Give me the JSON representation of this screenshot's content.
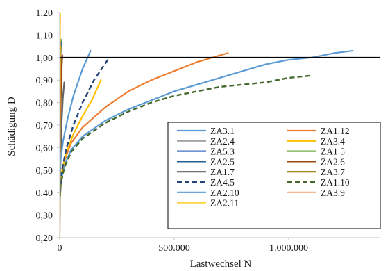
{
  "chart_data": {
    "type": "line",
    "xlabel": "Lastwechsel N",
    "ylabel": "Schädigung D",
    "xlim": [
      0,
      1400000
    ],
    "ylim": [
      0.2,
      1.2
    ],
    "x_ticks": [
      0,
      500000,
      1000000
    ],
    "x_tick_labels": [
      "0",
      "500.000",
      "1.000.000"
    ],
    "y_ticks": [
      0.2,
      0.3,
      0.4,
      0.5,
      0.6,
      0.7,
      0.8,
      0.9,
      1.0,
      1.1,
      1.2
    ],
    "y_tick_labels": [
      "0,20",
      "0,30",
      "0,40",
      "0,50",
      "0,60",
      "0,70",
      "0,80",
      "0,90",
      "1,00",
      "1,10",
      "1,20"
    ],
    "grid": false,
    "legend_placement": "bottom-right",
    "reference_line": {
      "y": 1.0,
      "color": "#000000"
    },
    "series": [
      {
        "name": "ZA3.1",
        "color": "#5b9bd5",
        "dash": "solid",
        "x": [
          0,
          5000,
          20000,
          50000,
          100000,
          200000,
          300000,
          400000,
          500000,
          600000,
          700000,
          800000,
          900000,
          1000000,
          1100000,
          1200000,
          1280000
        ],
        "y": [
          0.36,
          0.45,
          0.52,
          0.59,
          0.65,
          0.72,
          0.77,
          0.81,
          0.85,
          0.88,
          0.91,
          0.94,
          0.97,
          0.99,
          1.0,
          1.02,
          1.03
        ]
      },
      {
        "name": "ZA1.12",
        "color": "#ed7d31",
        "dash": "solid",
        "x": [
          0,
          5000,
          20000,
          50000,
          100000,
          200000,
          300000,
          400000,
          500000,
          600000,
          700000,
          735000
        ],
        "y": [
          0.38,
          0.47,
          0.54,
          0.62,
          0.69,
          0.78,
          0.85,
          0.9,
          0.94,
          0.98,
          1.01,
          1.02
        ]
      },
      {
        "name": "ZA2.4",
        "color": "#a5a5a5",
        "dash": "solid",
        "x": [
          0,
          2000,
          5000,
          8000,
          10000
        ],
        "y": [
          0.22,
          0.5,
          0.72,
          0.9,
          1.0
        ]
      },
      {
        "name": "ZA3.4",
        "color": "#ffc000",
        "dash": "solid",
        "x": [
          0,
          10000,
          30000,
          60000,
          100000,
          140000,
          180000
        ],
        "y": [
          0.4,
          0.5,
          0.58,
          0.66,
          0.74,
          0.81,
          0.9
        ]
      },
      {
        "name": "ZA5.3",
        "color": "#4472c4",
        "dash": "solid",
        "x": [
          0,
          500,
          1500,
          3000,
          5000
        ],
        "y": [
          0.3,
          0.6,
          0.85,
          1.0,
          1.08
        ]
      },
      {
        "name": "ZA1.5",
        "color": "#70ad47",
        "dash": "solid",
        "x": [
          0,
          800,
          2000,
          4000,
          6000
        ],
        "y": [
          0.25,
          0.55,
          0.82,
          1.0,
          1.08
        ]
      },
      {
        "name": "ZA2.5",
        "color": "#255e91",
        "dash": "solid",
        "x": [
          0,
          700,
          1800,
          3500,
          5500
        ],
        "y": [
          0.27,
          0.56,
          0.83,
          0.99,
          1.07
        ]
      },
      {
        "name": "ZA2.6",
        "color": "#9e480e",
        "dash": "solid",
        "x": [
          0,
          1500,
          4000,
          8000,
          12000
        ],
        "y": [
          0.3,
          0.58,
          0.8,
          0.95,
          1.01
        ]
      },
      {
        "name": "ZA1.7",
        "color": "#636363",
        "dash": "solid",
        "x": [
          0,
          3000,
          8000,
          14000,
          20000
        ],
        "y": [
          0.3,
          0.52,
          0.7,
          0.82,
          0.89
        ]
      },
      {
        "name": "ZA3.7",
        "color": "#997300",
        "dash": "solid",
        "x": [
          0,
          600,
          1500,
          3000,
          4500
        ],
        "y": [
          0.27,
          0.55,
          0.8,
          0.98,
          1.05
        ]
      },
      {
        "name": "ZA4.5",
        "color": "#264478",
        "dash": "dashed",
        "x": [
          0,
          10000,
          30000,
          60000,
          100000,
          150000,
          210000
        ],
        "y": [
          0.37,
          0.5,
          0.6,
          0.7,
          0.8,
          0.9,
          0.99
        ]
      },
      {
        "name": "ZA1.10",
        "color": "#43682b",
        "dash": "dashed",
        "x": [
          0,
          5000,
          20000,
          50000,
          100000,
          200000,
          300000,
          400000,
          500000,
          600000,
          700000,
          800000,
          900000,
          1000000,
          1100000
        ],
        "y": [
          0.35,
          0.44,
          0.51,
          0.58,
          0.64,
          0.71,
          0.76,
          0.8,
          0.83,
          0.85,
          0.87,
          0.88,
          0.89,
          0.91,
          0.92
        ]
      },
      {
        "name": "ZA2.10",
        "color": "#5b9bd5",
        "dash": "solid",
        "x": [
          0,
          5000,
          15000,
          35000,
          60000,
          100000,
          135000
        ],
        "y": [
          0.45,
          0.55,
          0.63,
          0.73,
          0.83,
          0.95,
          1.03
        ]
      },
      {
        "name": "ZA3.9",
        "color": "#f4b183",
        "dash": "solid",
        "x": [
          0,
          400,
          1000,
          1800,
          2500
        ],
        "y": [
          0.2,
          0.5,
          0.85,
          1.1,
          1.2
        ]
      },
      {
        "name": "ZA2.11",
        "color": "#ffd33d",
        "dash": "solid",
        "x": [
          0,
          300,
          800,
          1500,
          2500
        ],
        "y": [
          0.2,
          0.6,
          0.95,
          1.15,
          1.2
        ]
      }
    ]
  }
}
